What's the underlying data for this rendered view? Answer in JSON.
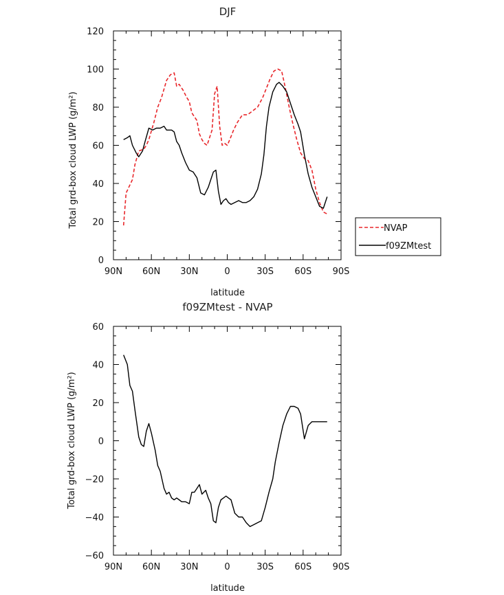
{
  "chart_data": [
    {
      "type": "line",
      "title": "DJF",
      "xlabel": "latitude",
      "ylabel": "Total grd-box cloud LWP (g/m²)",
      "xlim": [
        -90,
        90
      ],
      "ylim": [
        0,
        120
      ],
      "xticks": [
        -90,
        -60,
        -30,
        0,
        30,
        60,
        90
      ],
      "xtick_labels": [
        "90N",
        "60N",
        "30N",
        "0",
        "30S",
        "60S",
        "90S"
      ],
      "yticks": [
        0,
        20,
        40,
        60,
        80,
        100,
        120
      ],
      "ytick_labels": [
        "0",
        "20",
        "40",
        "60",
        "80",
        "100",
        "120"
      ],
      "legend_position": "right",
      "series": [
        {
          "name": "NVAP",
          "color": "#e8262a",
          "dash": true,
          "x": [
            -82,
            -80,
            -75,
            -73,
            -70,
            -66,
            -64,
            -62,
            -58,
            -55,
            -52,
            -48,
            -45,
            -42,
            -40,
            -38,
            -35,
            -32,
            -30,
            -28,
            -26,
            -24,
            -22,
            -20,
            -18,
            -16,
            -12,
            -10,
            -8,
            -6,
            -4,
            -2,
            0,
            2,
            5,
            8,
            12,
            16,
            20,
            24,
            28,
            31,
            34,
            37,
            40,
            43,
            46,
            49,
            52,
            55,
            58,
            61,
            64,
            67,
            70,
            73,
            76,
            79
          ],
          "y": [
            18,
            35,
            42,
            50,
            57,
            58,
            60,
            63,
            72,
            80,
            85,
            94,
            97,
            98,
            91,
            92,
            89,
            85,
            83,
            77,
            75,
            73,
            66,
            63,
            61,
            60,
            68,
            87,
            91,
            70,
            60,
            61,
            60,
            63,
            68,
            72,
            76,
            76,
            78,
            80,
            85,
            90,
            95,
            99,
            100,
            99,
            90,
            80,
            71,
            63,
            56,
            53,
            52,
            47,
            37,
            30,
            25,
            24
          ]
        },
        {
          "name": "f09ZMtest",
          "color": "#000000",
          "dash": false,
          "x": [
            -82,
            -79,
            -77,
            -75,
            -72,
            -70,
            -67,
            -65,
            -62,
            -59,
            -56,
            -53,
            -50,
            -48,
            -46,
            -44,
            -42,
            -40,
            -38,
            -36,
            -33,
            -30,
            -27,
            -24,
            -21,
            -18,
            -15,
            -13,
            -11,
            -9,
            -7,
            -5,
            -3,
            -1,
            1,
            3,
            6,
            9,
            12,
            15,
            18,
            21,
            24,
            27,
            29,
            31,
            33,
            36,
            39,
            41,
            44,
            47,
            50,
            53,
            56,
            58,
            61,
            64,
            67,
            70,
            73,
            76,
            79
          ],
          "y": [
            63,
            64,
            65,
            60,
            56,
            54,
            57,
            62,
            69,
            68,
            69,
            69,
            70,
            68,
            68,
            68,
            67,
            62,
            60,
            56,
            51,
            47,
            46,
            43,
            35,
            34,
            38,
            42,
            46,
            47,
            36,
            29,
            31,
            32,
            30,
            29,
            30,
            31,
            30,
            30,
            31,
            33,
            37,
            45,
            55,
            70,
            80,
            88,
            92,
            93,
            91,
            88,
            82,
            76,
            71,
            67,
            55,
            45,
            38,
            33,
            28,
            27,
            33
          ]
        }
      ]
    },
    {
      "type": "line",
      "title": "f09ZMtest - NVAP",
      "xlabel": "latitude",
      "ylabel": "Total grd-box cloud LWP (g/m²)",
      "xlim": [
        -90,
        90
      ],
      "ylim": [
        -60,
        60
      ],
      "xticks": [
        -90,
        -60,
        -30,
        0,
        30,
        60,
        90
      ],
      "xtick_labels": [
        "90N",
        "60N",
        "30N",
        "0",
        "30S",
        "60S",
        "90S"
      ],
      "yticks": [
        -60,
        -40,
        -20,
        0,
        20,
        40,
        60
      ],
      "ytick_labels": [
        "−60",
        "−40",
        "−20",
        "0",
        "20",
        "40",
        "60"
      ],
      "series": [
        {
          "color": "#000000",
          "dash": false,
          "x": [
            -82,
            -79,
            -77,
            -75,
            -73,
            -70,
            -68,
            -66,
            -64,
            -62,
            -60,
            -57,
            -55,
            -53,
            -50,
            -48,
            -46,
            -44,
            -42,
            -40,
            -38,
            -36,
            -33,
            -30,
            -28,
            -26,
            -24,
            -22,
            -20,
            -17,
            -15,
            -13,
            -11,
            -9,
            -7,
            -5,
            -3,
            -1,
            1,
            3,
            6,
            9,
            12,
            15,
            18,
            21,
            24,
            27,
            30,
            33,
            36,
            38,
            41,
            44,
            47,
            50,
            53,
            56,
            58,
            61,
            64,
            67,
            69,
            71,
            73,
            76,
            79
          ],
          "y": [
            45,
            40,
            29,
            26,
            16,
            2,
            -2,
            -3,
            5,
            9,
            4,
            -5,
            -13,
            -16,
            -25,
            -28,
            -27,
            -30,
            -31,
            -30,
            -31,
            -32,
            -32,
            -33,
            -27,
            -27,
            -25,
            -23,
            -28,
            -26,
            -30,
            -33,
            -42,
            -43,
            -35,
            -31,
            -30,
            -29,
            -30,
            -31,
            -38,
            -40,
            -40,
            -43,
            -45,
            -44,
            -43,
            -42,
            -35,
            -27,
            -20,
            -11,
            -1,
            8,
            14,
            18,
            18,
            17,
            14,
            1,
            8,
            10,
            10,
            10,
            10,
            10,
            10
          ]
        }
      ]
    }
  ]
}
